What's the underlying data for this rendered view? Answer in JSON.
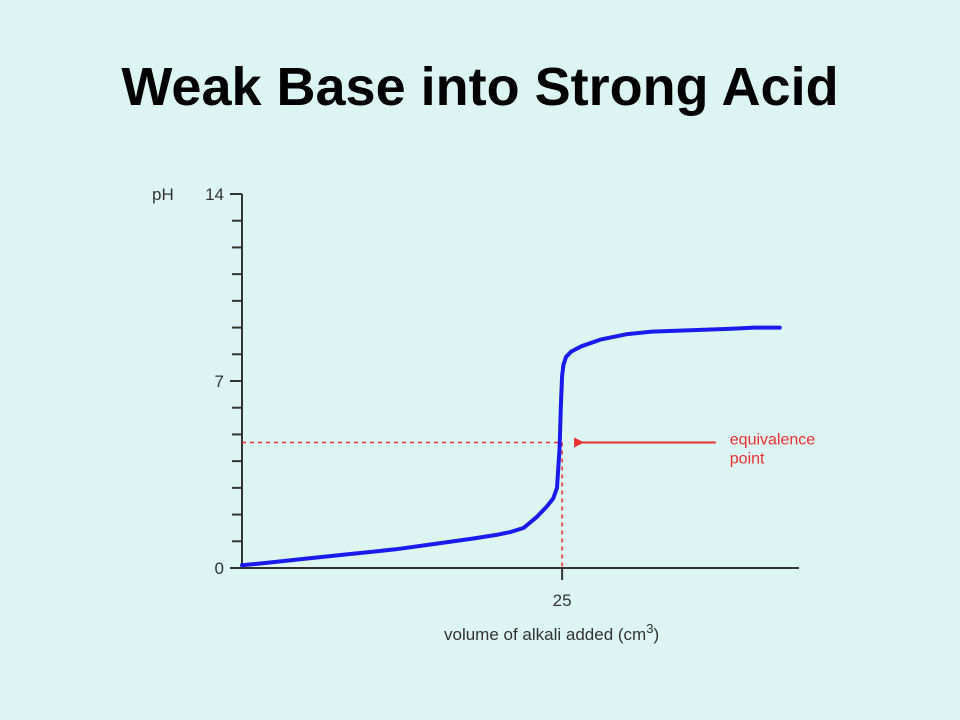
{
  "slide": {
    "title": "Weak Base into Strong Acid"
  },
  "chart_data": {
    "type": "line",
    "ylabel": "pH",
    "xlabel": "volume of alkali added (cm",
    "xlabel_sup": "3",
    "xlabel_close": ")",
    "ylim": [
      0,
      14
    ],
    "xlim": [
      0,
      43.5
    ],
    "y_major_ticks": [
      0,
      7,
      14
    ],
    "y_tick_labels": [
      "0",
      "7",
      "14"
    ],
    "y_minor_step": 1,
    "x_tick_values": [
      25
    ],
    "x_tick_labels": [
      "25"
    ],
    "series": [
      {
        "color": "#1a1aee",
        "x": [
          0,
          2,
          5,
          8,
          12,
          15,
          18,
          20,
          21,
          22,
          23,
          23.8,
          24.3,
          24.6,
          24.8,
          24.9,
          25.0,
          25.05,
          25.1,
          25.3,
          25.7,
          26.5,
          28,
          30,
          32,
          35,
          38,
          40,
          42
        ],
        "y": [
          0.1,
          0.2,
          0.35,
          0.5,
          0.7,
          0.9,
          1.1,
          1.25,
          1.35,
          1.5,
          1.9,
          2.3,
          2.6,
          3.0,
          4.5,
          6.0,
          7.2,
          7.4,
          7.6,
          7.9,
          8.1,
          8.3,
          8.55,
          8.75,
          8.85,
          8.9,
          8.95,
          9.0,
          9.0
        ]
      }
    ],
    "annotations": [
      {
        "label_line1": "equivalence",
        "label_line2": "point",
        "x": 25,
        "y": 4.7,
        "color": "#e8312f",
        "arrow_from_x": 37
      }
    ]
  }
}
